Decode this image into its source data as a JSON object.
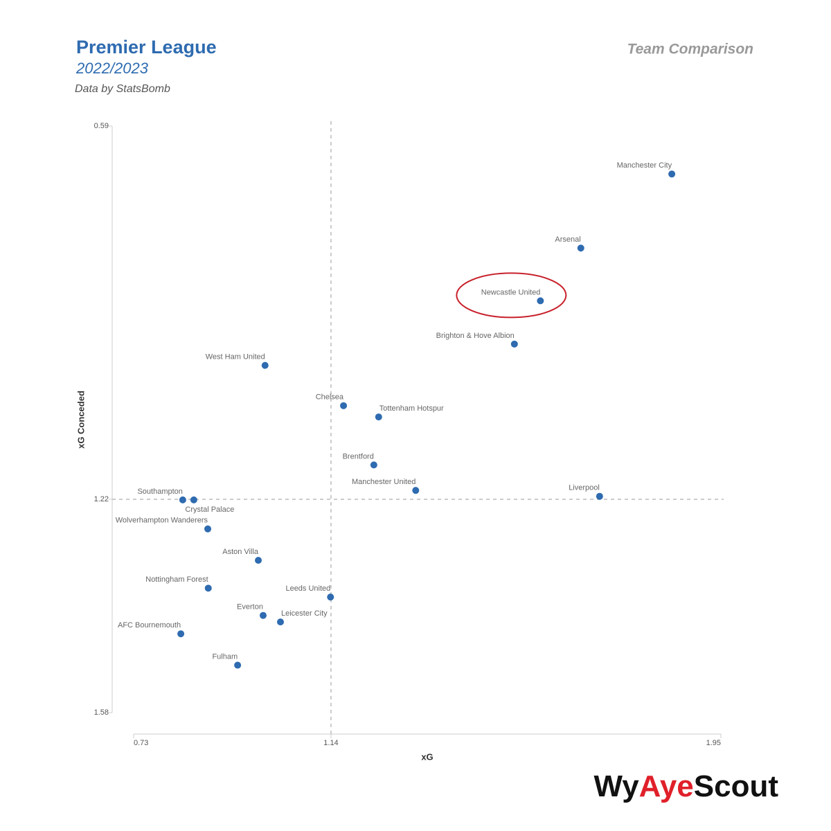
{
  "chart_data": {
    "type": "scatter",
    "title": "Premier League",
    "subtitle": "2022/2023",
    "source": "Data by StatsBomb",
    "header_right": "Team Comparison",
    "x_label": "xG",
    "y_label": "xG Conceded",
    "logo": [
      "Wy",
      "Aye",
      "Scout"
    ],
    "color": "#2e6bb0",
    "labels": [
      "Manchester City",
      "Arsenal",
      "Newcastle United",
      "Brighton & Hove Albion",
      "West Ham United",
      "Chelsea",
      "Tottenham Hotspur",
      "Brentford",
      "Manchester United",
      "Liverpool",
      "Southampton",
      "Crystal Palace",
      "Wolverhampton Wanderers",
      "Aston Villa",
      "Nottingham Forest",
      "Leeds United",
      "Everton",
      "Leicester City",
      "AFC Bournemouth",
      "Fulham"
    ],
    "x": [
      1.848,
      1.659,
      1.575,
      1.521,
      1.003,
      1.166,
      1.239,
      1.229,
      1.316,
      1.698,
      0.832,
      0.855,
      0.884,
      0.989,
      0.885,
      1.139,
      0.999,
      1.035,
      0.828,
      0.946
    ],
    "y": [
      0.671,
      0.796,
      0.885,
      0.958,
      0.994,
      1.062,
      1.081,
      1.162,
      1.205,
      1.215,
      1.221,
      1.221,
      1.27,
      1.323,
      1.37,
      1.385,
      1.416,
      1.427,
      1.447,
      1.5
    ],
    "xlim": [
      0.73,
      1.95
    ],
    "xticks": [
      0.73,
      1.14,
      1.95
    ],
    "ylim": [
      0.59,
      1.58
    ],
    "yticks": [
      0.59,
      1.22,
      1.58
    ],
    "y_inverted": true,
    "ref_x": 1.14,
    "ref_y": 1.22
  }
}
